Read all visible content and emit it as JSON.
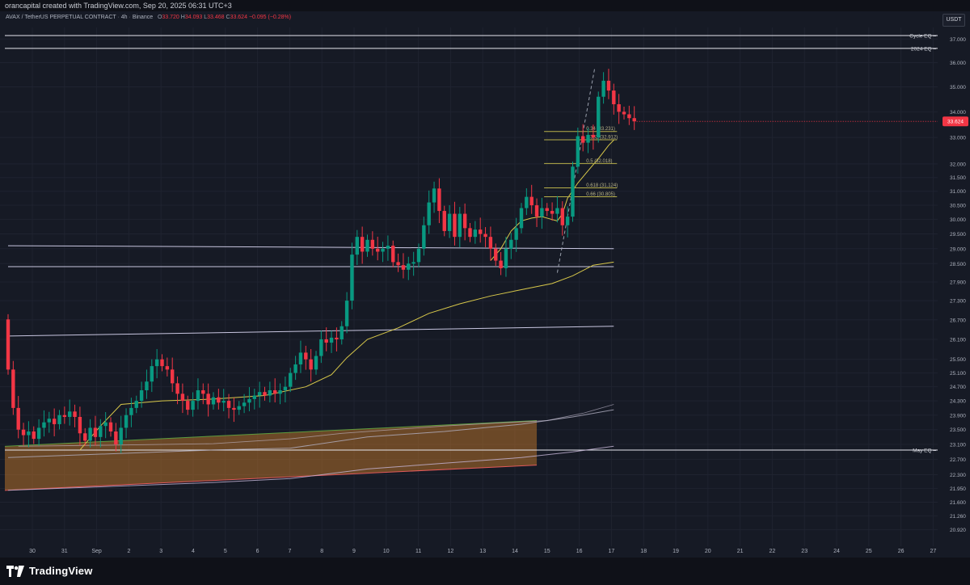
{
  "header": {
    "credit": "orancapital created with TradingView.com, Sep 20, 2025 06:31 UTC+3"
  },
  "legend": {
    "symbol": "AVAX / TetherUS PERPETUAL CONTRACT",
    "interval": "4h",
    "exchange": "Binance",
    "open_label": "O",
    "open": "33.720",
    "high_label": "H",
    "high": "34.093",
    "low_label": "L",
    "low": "33.468",
    "close_label": "C",
    "close": "33.624",
    "change": "−0.095 (−0.28%)"
  },
  "currency_button": "USDT",
  "footer": {
    "brand": "TradingView"
  },
  "colors": {
    "background": "#161a25",
    "up": "#089981",
    "down": "#f23645",
    "ema": "#d8c84a",
    "fib": "#b8b04a",
    "grid": "#1f2330"
  },
  "chart_data": {
    "type": "candlestick",
    "instrument": "AVAX / TetherUS PERPETUAL CONTRACT",
    "interval": "4h",
    "exchange": "Binance",
    "y_scale": "log",
    "ylim": [
      20.6,
      37.5
    ],
    "xlabel": "",
    "ylabel": "",
    "x_ticks": [
      "30",
      "31",
      "Sep",
      "2",
      "3",
      "4",
      "5",
      "6",
      "7",
      "8",
      "9",
      "10",
      "11",
      "12",
      "13",
      "14",
      "15",
      "16",
      "17",
      "18",
      "19",
      "20",
      "21",
      "22",
      "23",
      "24",
      "25",
      "26",
      "27"
    ],
    "y_ticks": [
      20.92,
      21.26,
      21.6,
      21.95,
      22.3,
      22.7,
      23.1,
      23.5,
      23.9,
      24.3,
      24.7,
      25.1,
      25.5,
      26.1,
      26.7,
      27.3,
      27.9,
      28.5,
      29.0,
      29.5,
      30.0,
      30.5,
      31.0,
      31.5,
      32.0,
      33.0,
      34.0,
      35.0,
      36.0,
      37.0
    ],
    "y_tick_labels": [
      "20.920",
      "21.260",
      "21.600",
      "21.950",
      "22.300",
      "22.700",
      "23.100",
      "23.500",
      "23.900",
      "24.300",
      "24.700",
      "25.100",
      "25.500",
      "26.100",
      "26.700",
      "27.300",
      "27.900",
      "28.500",
      "29.000",
      "29.500",
      "30.000",
      "30.500",
      "31.000",
      "31.500",
      "32.000",
      "33.000",
      "34.000",
      "35.000",
      "36.000",
      "37.000"
    ],
    "last_price": 33.624,
    "last_price_label": "33.624",
    "closes": [
      25.2,
      24.1,
      23.5,
      23.35,
      23.45,
      23.25,
      23.55,
      23.7,
      23.8,
      23.65,
      23.9,
      23.85,
      24.0,
      23.85,
      23.4,
      23.2,
      23.55,
      23.3,
      23.6,
      23.7,
      23.45,
      23.1,
      23.55,
      23.9,
      24.1,
      24.3,
      24.6,
      24.85,
      25.3,
      25.5,
      25.3,
      25.2,
      24.8,
      24.5,
      24.3,
      24.05,
      24.3,
      24.6,
      24.5,
      24.2,
      24.4,
      24.25,
      24.3,
      24.1,
      24.05,
      24.15,
      24.25,
      24.35,
      24.45,
      24.55,
      24.45,
      24.6,
      24.5,
      24.6,
      24.7,
      25.1,
      25.35,
      25.7,
      25.5,
      25.2,
      25.6,
      26.1,
      26.0,
      26.15,
      26.1,
      26.5,
      27.3,
      28.8,
      29.4,
      28.9,
      29.3,
      29.0,
      28.9,
      29.0,
      29.1,
      28.55,
      28.45,
      28.3,
      28.5,
      28.55,
      29.0,
      29.8,
      30.6,
      31.1,
      30.3,
      29.6,
      30.2,
      29.4,
      30.2,
      29.7,
      29.4,
      29.65,
      29.5,
      29.4,
      29.0,
      28.6,
      28.35,
      29.0,
      29.3,
      29.7,
      30.4,
      30.8,
      30.5,
      30.1,
      30.4,
      30.3,
      30.2,
      30.4,
      29.8,
      30.1,
      31.9,
      33.05,
      32.8,
      33.1,
      33.0,
      34.6,
      35.25,
      34.85,
      34.3,
      34.0,
      33.9,
      33.75,
      33.624
    ],
    "series": [
      {
        "name": "",
        "style": "ema-short",
        "color": "#d8c84a"
      },
      {
        "name": "",
        "style": "ema-long",
        "color": "#d8c84a"
      },
      {
        "name": "",
        "style": "ma",
        "color": "#9a98a8"
      },
      {
        "name": "",
        "style": "ma",
        "color": "#c9c9d6"
      }
    ],
    "ema_short_points": [
      [
        14,
        22.95
      ],
      [
        18,
        23.6
      ],
      [
        22,
        24.2
      ],
      [
        30,
        24.3
      ],
      [
        40,
        24.35
      ],
      [
        50,
        24.45
      ],
      [
        58,
        24.7
      ],
      [
        63,
        25.05
      ],
      [
        66,
        25.55
      ],
      [
        70,
        26.1
      ],
      [
        76,
        26.45
      ],
      [
        82,
        26.9
      ],
      [
        88,
        27.2
      ],
      [
        94,
        27.45
      ],
      [
        100,
        27.65
      ],
      [
        106,
        27.85
      ],
      [
        110,
        28.1
      ],
      [
        114,
        28.45
      ],
      [
        118,
        28.55
      ]
    ],
    "ema_long_points": [
      [
        2,
        23.05
      ],
      [
        20,
        23.08
      ],
      [
        40,
        23.12
      ],
      [
        55,
        23.25
      ],
      [
        65,
        23.4
      ],
      [
        75,
        23.5
      ],
      [
        85,
        23.6
      ],
      [
        95,
        23.68
      ],
      [
        105,
        23.75
      ],
      [
        112,
        23.95
      ],
      [
        118,
        24.2
      ]
    ],
    "ma_low_points": [
      [
        0,
        21.9
      ],
      [
        20,
        22.0
      ],
      [
        40,
        22.1
      ],
      [
        55,
        22.2
      ],
      [
        70,
        22.45
      ],
      [
        85,
        22.6
      ],
      [
        100,
        22.75
      ],
      [
        110,
        22.9
      ],
      [
        118,
        23.05
      ]
    ],
    "ma_mid_points": [
      [
        0,
        22.75
      ],
      [
        20,
        22.85
      ],
      [
        40,
        22.95
      ],
      [
        55,
        23.0
      ],
      [
        70,
        23.3
      ],
      [
        85,
        23.45
      ],
      [
        100,
        23.65
      ],
      [
        110,
        23.85
      ],
      [
        118,
        24.05
      ]
    ],
    "ema_fast_points": [
      [
        94,
        28.6
      ],
      [
        96,
        29.0
      ],
      [
        98,
        29.6
      ],
      [
        100,
        29.95
      ],
      [
        102,
        30.05
      ],
      [
        104,
        30.1
      ],
      [
        106,
        30.0
      ],
      [
        107,
        29.95
      ],
      [
        108,
        30.2
      ],
      [
        109,
        30.75
      ],
      [
        111,
        31.3
      ],
      [
        113,
        31.75
      ],
      [
        115,
        32.2
      ],
      [
        117,
        32.7
      ],
      [
        118,
        32.9
      ]
    ],
    "horizontal_levels": [
      {
        "label": "Cycle EQ",
        "value": 37.15
      },
      {
        "label": "2024 EQ",
        "value": 36.6
      },
      {
        "label": "May EQ",
        "value": 22.95
      }
    ],
    "trend_lines": [
      {
        "points": [
          [
            0,
            29.1
          ],
          [
            118,
            29.0
          ]
        ]
      },
      {
        "points": [
          [
            0,
            28.4
          ],
          [
            118,
            28.4
          ]
        ]
      },
      {
        "points": [
          [
            0,
            26.2
          ],
          [
            118,
            26.5
          ]
        ]
      }
    ],
    "fib_levels": [
      {
        "label": "0.34 (33.231)",
        "value": 33.231
      },
      {
        "label": "0.382 (32.912)",
        "value": 32.912
      },
      {
        "label": "0.5 (32.018)",
        "value": 32.018
      },
      {
        "label": "0.618 (31.124)",
        "value": 31.124
      },
      {
        "label": "0.66 (30.805)",
        "value": 30.805
      }
    ],
    "fib_range": [
      28.2,
      35.8
    ],
    "zone": {
      "top_start": 23.05,
      "top_end": 23.75,
      "bottom_start": 21.9,
      "bottom_end": 22.55
    }
  }
}
